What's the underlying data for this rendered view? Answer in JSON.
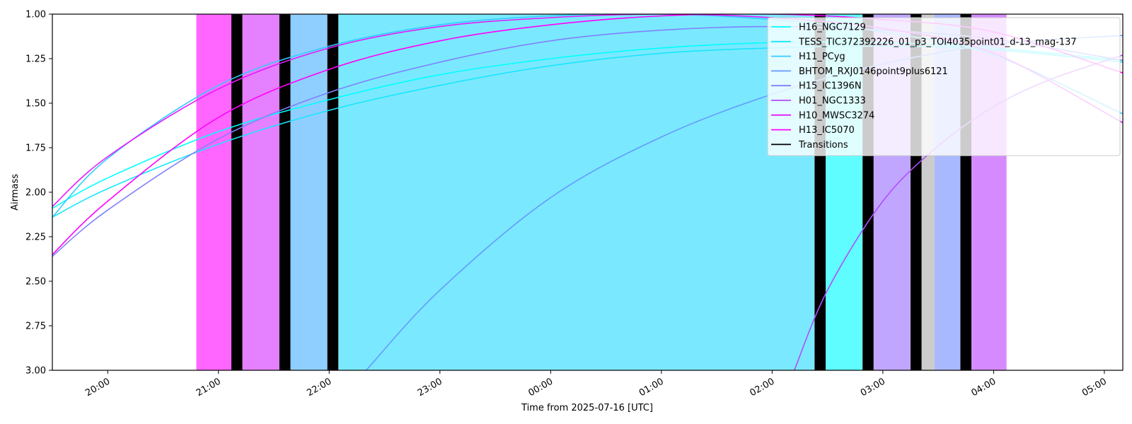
{
  "chart_data": {
    "type": "line",
    "title": "",
    "xlabel": "Time from 2025-07-16 [UTC]",
    "ylabel": "Airmass",
    "x_range": [
      "19:30",
      "05:10"
    ],
    "ylim": [
      3.0,
      1.0
    ],
    "y_inverted": true,
    "grid": false,
    "legend_position": "top-right",
    "x_ticks": [
      "20:00",
      "21:00",
      "22:00",
      "23:00",
      "00:00",
      "01:00",
      "02:00",
      "03:00",
      "04:00",
      "05:00"
    ],
    "y_ticks": [
      "1.00",
      "1.25",
      "1.50",
      "1.75",
      "2.00",
      "2.25",
      "2.50",
      "2.75",
      "3.00"
    ],
    "series": [
      {
        "name": "H16_NGC7129",
        "color": "#00ffff",
        "x": [
          "19:30",
          "20:00",
          "21:00",
          "22:00",
          "23:00",
          "00:00",
          "01:00",
          "02:00",
          "03:00",
          "04:00",
          "05:10"
        ],
        "values": [
          2.09,
          1.92,
          1.66,
          1.48,
          1.34,
          1.25,
          1.19,
          1.16,
          1.16,
          1.19,
          1.26
        ]
      },
      {
        "name": "TESS_TIC372392226_01_p3_TOI4035point01_d-13_mag-137",
        "color": "#1ae5ff",
        "x": [
          "19:30",
          "20:00",
          "21:00",
          "22:00",
          "23:00",
          "00:00",
          "01:00",
          "02:00",
          "03:00",
          "04:00",
          "05:10"
        ],
        "values": [
          2.14,
          1.98,
          1.73,
          1.54,
          1.4,
          1.29,
          1.22,
          1.19,
          1.18,
          1.2,
          1.27
        ]
      },
      {
        "name": "H11_PCyg",
        "color": "#33ccff",
        "x": [
          "19:30",
          "20:00",
          "21:00",
          "22:00",
          "23:00",
          "00:00",
          "01:00",
          "02:00",
          "03:00",
          "04:00",
          "05:10"
        ],
        "values": [
          2.14,
          1.81,
          1.4,
          1.18,
          1.06,
          1.01,
          1.0,
          1.03,
          1.1,
          1.23,
          1.56
        ]
      },
      {
        "name": "BHTOM_RXJ0146point9plus6121",
        "color": "#6699ff",
        "x": [
          "22:20",
          "23:00",
          "00:00",
          "01:00",
          "02:00",
          "03:00",
          "04:00",
          "05:10"
        ],
        "values": [
          3.0,
          2.55,
          2.03,
          1.69,
          1.45,
          1.28,
          1.17,
          1.12
        ]
      },
      {
        "name": "H15_IC1396N",
        "color": "#8080ff",
        "x": [
          "19:30",
          "20:00",
          "21:00",
          "22:00",
          "23:00",
          "00:00",
          "01:00",
          "02:00",
          "03:00",
          "04:00",
          "05:10"
        ],
        "values": [
          2.36,
          2.1,
          1.7,
          1.44,
          1.27,
          1.15,
          1.09,
          1.07,
          1.09,
          1.14,
          1.26
        ]
      },
      {
        "name": "H01_NGC1333",
        "color": "#b24cff",
        "x": [
          "02:12",
          "02:30",
          "03:00",
          "03:30",
          "04:00",
          "04:30",
          "05:10"
        ],
        "values": [
          3.0,
          2.55,
          2.05,
          1.74,
          1.52,
          1.37,
          1.23
        ]
      },
      {
        "name": "H10_MWSC3274",
        "color": "#e619ff",
        "x": [
          "19:30",
          "20:00",
          "21:00",
          "22:00",
          "23:00",
          "00:00",
          "01:00",
          "02:00",
          "03:00",
          "04:00",
          "05:10"
        ],
        "values": [
          2.08,
          1.8,
          1.42,
          1.19,
          1.07,
          1.02,
          1.0,
          1.02,
          1.08,
          1.22,
          1.61
        ]
      },
      {
        "name": "H13_IC5070",
        "color": "#ff00ff",
        "x": [
          "19:30",
          "20:00",
          "21:00",
          "22:00",
          "23:00",
          "00:00",
          "01:00",
          "02:00",
          "03:00",
          "04:00",
          "05:10"
        ],
        "values": [
          2.35,
          2.05,
          1.58,
          1.31,
          1.15,
          1.06,
          1.01,
          1.0,
          1.03,
          1.1,
          1.33
        ]
      }
    ],
    "transitions_label": "Transitions",
    "transitions_color": "#000000",
    "spans": [
      {
        "start": "20:48",
        "end": "21:07",
        "color": "#ff66ff",
        "kind": "target"
      },
      {
        "start": "21:07",
        "end": "21:13",
        "color": "#000000",
        "kind": "transition"
      },
      {
        "start": "21:13",
        "end": "21:33",
        "color": "#e580ff",
        "kind": "target"
      },
      {
        "start": "21:33",
        "end": "21:39",
        "color": "#000000",
        "kind": "transition"
      },
      {
        "start": "21:39",
        "end": "21:59",
        "color": "#8fcfff",
        "kind": "target"
      },
      {
        "start": "21:59",
        "end": "22:05",
        "color": "#000000",
        "kind": "transition"
      },
      {
        "start": "22:05",
        "end": "02:23",
        "color": "#7ae9ff",
        "kind": "target"
      },
      {
        "start": "02:23",
        "end": "02:29",
        "color": "#000000",
        "kind": "transition"
      },
      {
        "start": "02:29",
        "end": "02:49",
        "color": "#5ffdff",
        "kind": "target"
      },
      {
        "start": "02:49",
        "end": "02:55",
        "color": "#000000",
        "kind": "transition"
      },
      {
        "start": "02:55",
        "end": "03:15",
        "color": "#c0a6ff",
        "kind": "target"
      },
      {
        "start": "03:15",
        "end": "03:21",
        "color": "#000000",
        "kind": "transition"
      },
      {
        "start": "03:21",
        "end": "03:28",
        "color": "#cccccc",
        "kind": "idle"
      },
      {
        "start": "03:28",
        "end": "03:42",
        "color": "#a9b9ff",
        "kind": "target"
      },
      {
        "start": "03:42",
        "end": "03:48",
        "color": "#000000",
        "kind": "transition"
      },
      {
        "start": "03:48",
        "end": "04:07",
        "color": "#d58bff",
        "kind": "target"
      }
    ]
  }
}
